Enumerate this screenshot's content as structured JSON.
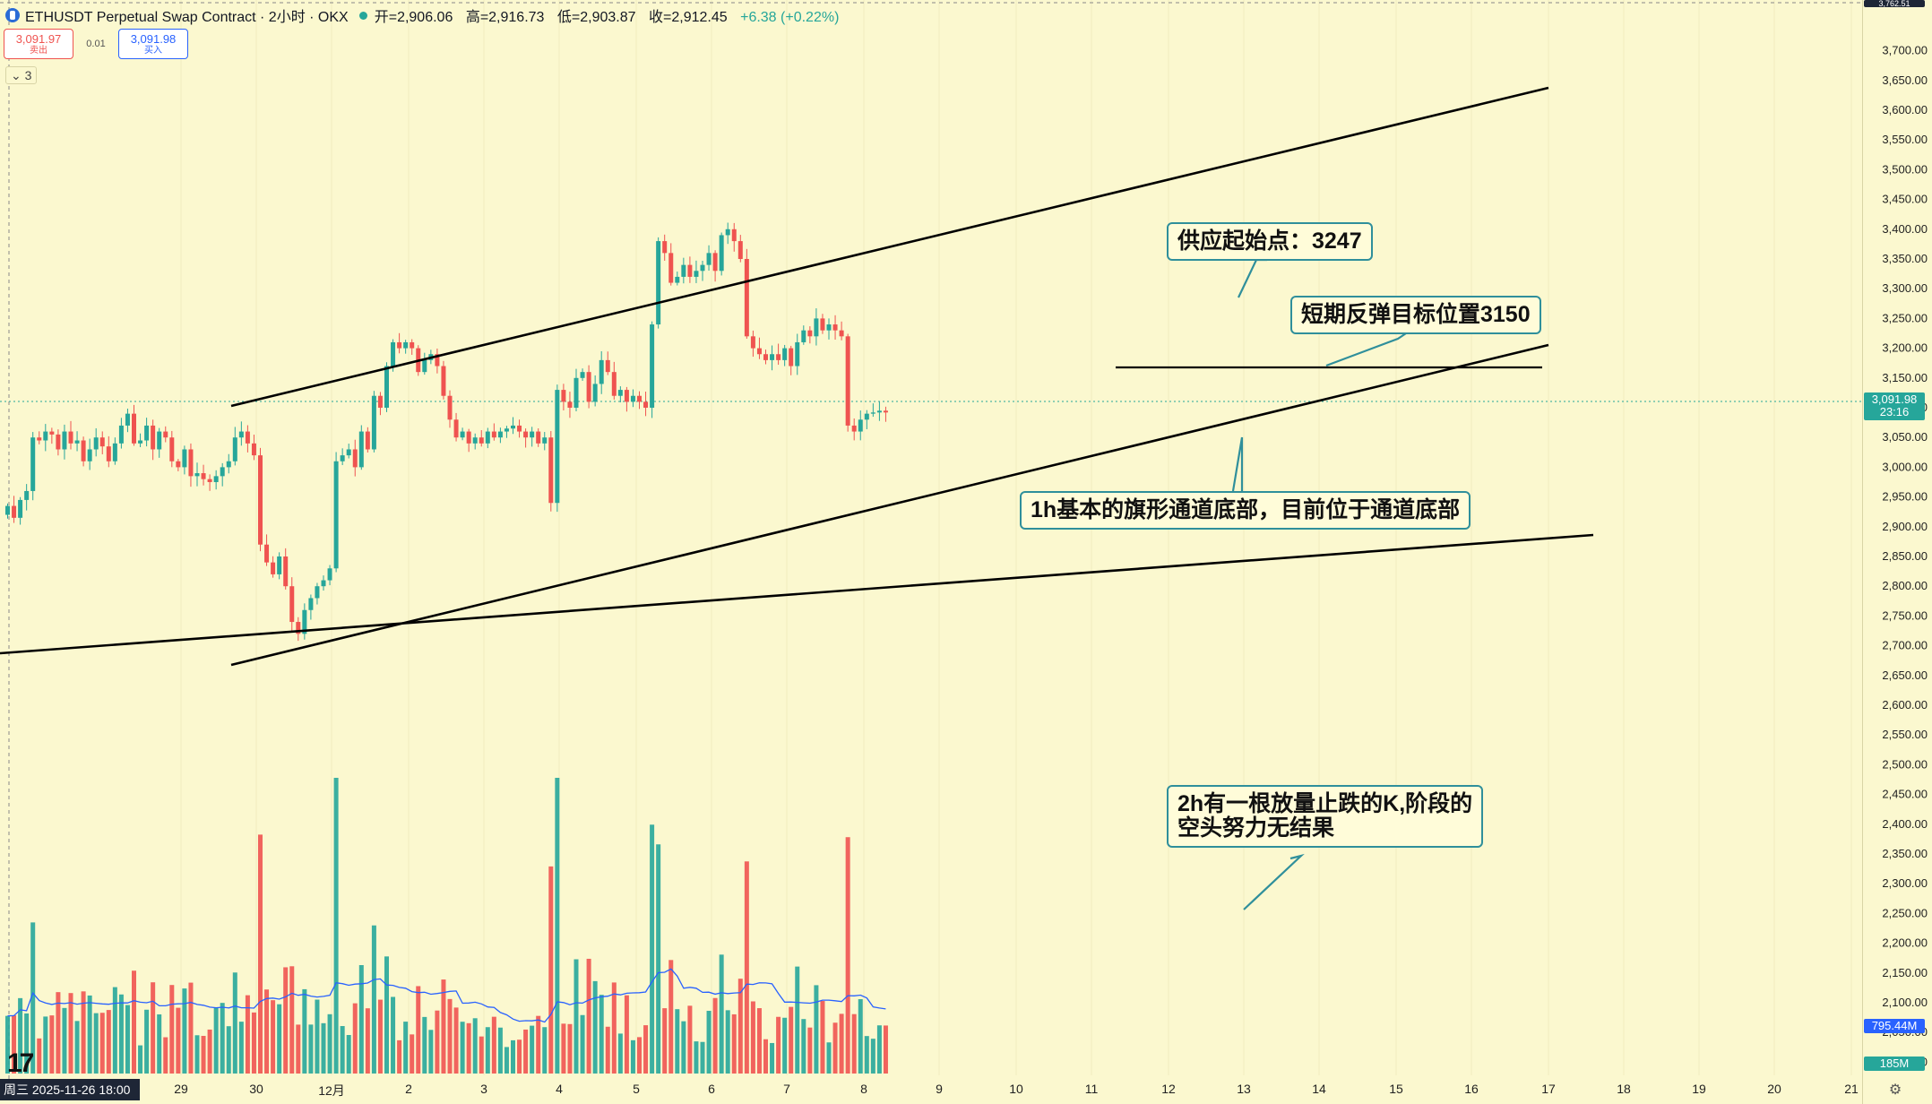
{
  "header": {
    "title": "ETHUSDT Perpetual Swap Contract · 2小时 · OKX",
    "open": "开=2,906.06",
    "high": "高=2,916.73",
    "low": "低=2,903.87",
    "close": "收=2,912.45",
    "change": "+6.38 (+0.22%)"
  },
  "trade": {
    "sell_price": "3,091.97",
    "sell_label": "卖出",
    "spread": "0.01",
    "buy_price": "3,091.98",
    "buy_label": "买入"
  },
  "indicator_badge": "3",
  "annotations": {
    "supply": "供应起始点：3247",
    "target": "短期反弹目标位置3150",
    "flag": "1h基本的旗形通道底部，目前位于通道底部",
    "volume_line1": "2h有一根放量止跌的K,阶段的",
    "volume_line2": "空头努力无结果"
  },
  "price_axis": {
    "ticks": [
      "3,700.00",
      "3,650.00",
      "3,600.00",
      "3,550.00",
      "3,500.00",
      "3,450.00",
      "3,400.00",
      "3,350.00",
      "3,300.00",
      "3,250.00",
      "3,200.00",
      "3,150.00",
      "3,100.00",
      "3,050.00",
      "3,000.00",
      "2,950.00",
      "2,900.00",
      "2,850.00",
      "2,800.00",
      "2,750.00",
      "2,700.00",
      "2,650.00",
      "2,600.00",
      "2,550.00",
      "2,500.00",
      "2,450.00",
      "2,400.00",
      "2,350.00",
      "2,300.00",
      "2,250.00",
      "2,200.00",
      "2,150.00",
      "2,100.00",
      "2,050.00",
      "2,000.00"
    ],
    "top_partial": "3,762.51",
    "current_price": "3,091.98",
    "countdown": "23:16",
    "volume_ma": "795.44M",
    "volume_last": "185M"
  },
  "time_axis": {
    "cursor_label": "周三 2025-11-26 18:00",
    "labels": [
      "29",
      "30",
      "12月",
      "2",
      "3",
      "4",
      "5",
      "6",
      "7",
      "8",
      "9",
      "10",
      "11",
      "12",
      "13",
      "14",
      "15",
      "16",
      "17",
      "18",
      "19",
      "20",
      "21"
    ]
  },
  "colors": {
    "background": "#fbf8cf",
    "up": "#26a69a",
    "down": "#ef5350",
    "annotation_border": "#2f8f9b",
    "volume_ma_line": "#2962ff"
  },
  "chart_data": {
    "type": "candlestick",
    "symbol": "ETHUSDT",
    "interval": "2小时",
    "price_range": [
      1985,
      3762.51
    ],
    "support_level": 3150,
    "supply_level": 3247,
    "closes": [
      2935,
      2915,
      2945,
      2960,
      3050,
      3045,
      3060,
      3055,
      3030,
      3060,
      3040,
      3045,
      3010,
      3030,
      3050,
      3035,
      3010,
      3040,
      3070,
      3090,
      3040,
      3045,
      3070,
      3030,
      3060,
      3050,
      3010,
      3000,
      3030,
      2985,
      2990,
      2980,
      2975,
      2985,
      3000,
      3010,
      3050,
      3060,
      3040,
      3020,
      2870,
      2840,
      2820,
      2850,
      2800,
      2740,
      2720,
      2760,
      2780,
      2800,
      2810,
      2830,
      3010,
      3020,
      3030,
      3000,
      3060,
      3030,
      3120,
      3100,
      3170,
      3210,
      3200,
      3210,
      3200,
      3160,
      3180,
      3190,
      3170,
      3120,
      3080,
      3050,
      3060,
      3040,
      3050,
      3040,
      3060,
      3050,
      3060,
      3065,
      3070,
      3060,
      3050,
      3060,
      3040,
      3050,
      2940,
      3130,
      3110,
      3100,
      3150,
      3160,
      3110,
      3140,
      3180,
      3160,
      3120,
      3130,
      3110,
      3120,
      3110,
      3100,
      3240,
      3380,
      3360,
      3310,
      3320,
      3340,
      3320,
      3330,
      3340,
      3360,
      3330,
      3390,
      3400,
      3380,
      3350,
      3220,
      3200,
      3190,
      3180,
      3190,
      3180,
      3200,
      3170,
      3210,
      3230,
      3220,
      3250,
      3230,
      3240,
      3230,
      3220,
      3070,
      3060,
      3080,
      3090,
      3092,
      3095,
      3092
    ]
  }
}
